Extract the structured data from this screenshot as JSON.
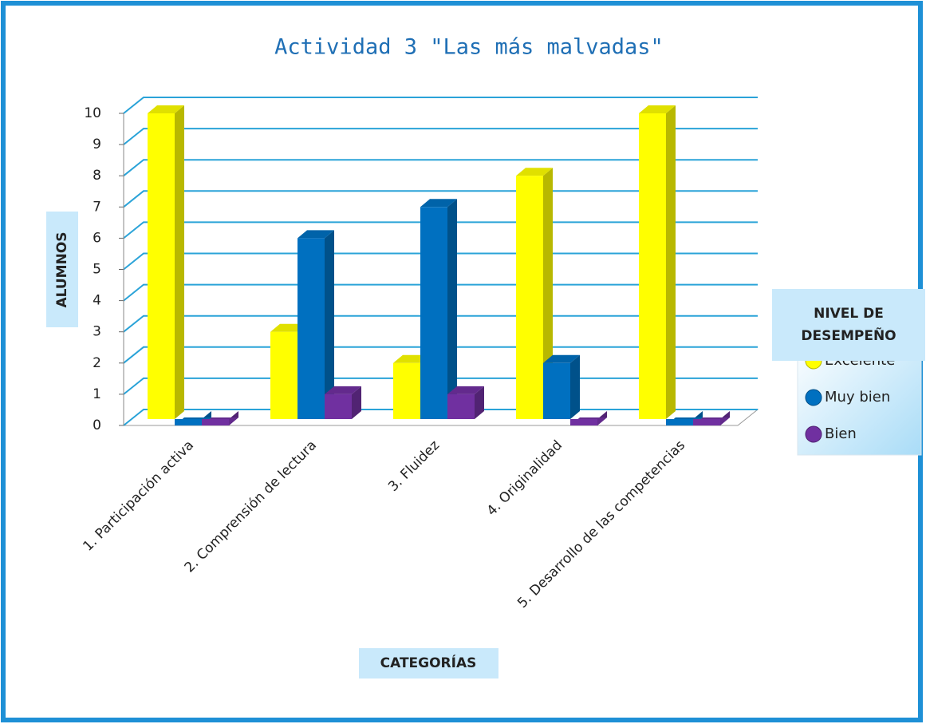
{
  "chart_data": {
    "type": "bar3d",
    "title": "Actividad 3 \"Las más malvadas\"",
    "y_label": "ALUMNOS",
    "x_label": "CATEGORÍAS",
    "legend_title": [
      "NIVEL DE",
      "DESEMPEÑO"
    ],
    "categories": [
      "1. Participación activa",
      "2. Comprensión de lectura",
      "3. Fluidez",
      "4. Originalidad",
      "5. Desarrollo de las competencias"
    ],
    "series": [
      {
        "name": "Excelente",
        "color": "#ffff00",
        "values": [
          10,
          3,
          2,
          8,
          10
        ]
      },
      {
        "name": "Muy bien",
        "color": "#0070c0",
        "values": [
          0,
          6,
          7,
          2,
          0
        ]
      },
      {
        "name": "Bien",
        "color": "#7030a0",
        "values": [
          0,
          1,
          1,
          0,
          0
        ]
      }
    ],
    "ylim": [
      0,
      10
    ],
    "yticks": [
      0,
      1,
      2,
      3,
      4,
      5,
      6,
      7,
      8,
      9,
      10
    ],
    "grid": true
  }
}
